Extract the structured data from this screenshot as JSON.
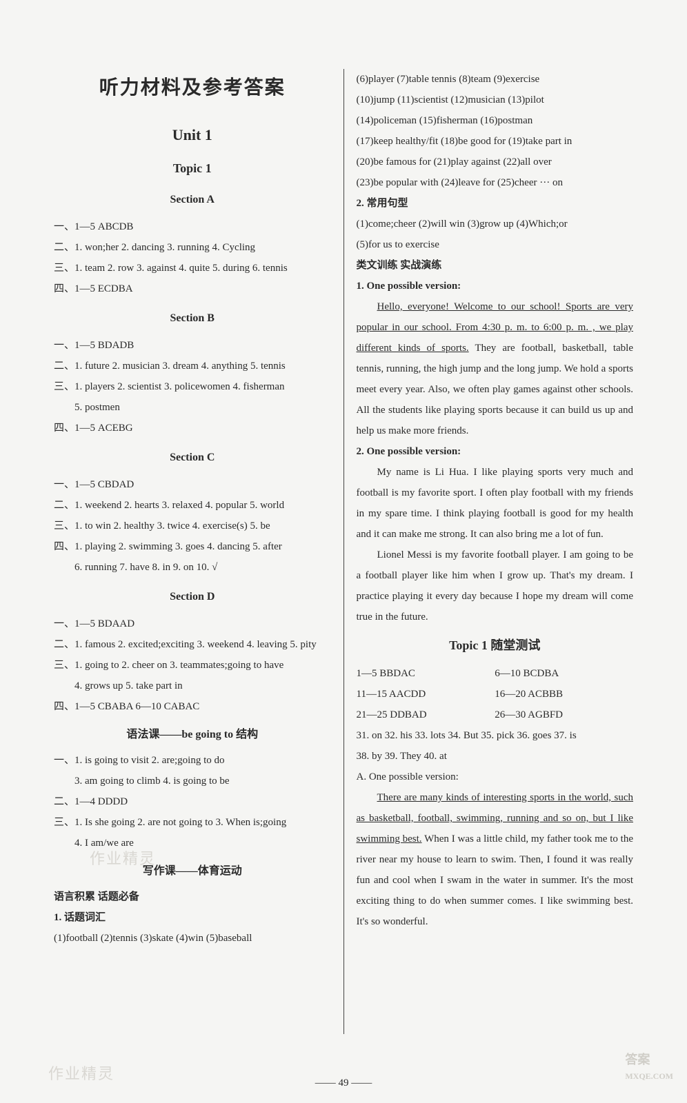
{
  "header": {
    "main_title": "听力材料及参考答案"
  },
  "left": {
    "unit": "Unit 1",
    "topic": "Topic 1",
    "secA": {
      "title": "Section A",
      "l1": "一、1—5 ABCDB",
      "l2": "二、1. won;her  2. dancing  3. running  4. Cycling",
      "l3": "三、1. team  2. row  3. against  4. quite  5. during  6. tennis",
      "l4": "四、1—5 ECDBA"
    },
    "secB": {
      "title": "Section B",
      "l1": "一、1—5 BDADB",
      "l2": "二、1. future  2. musician  3. dream  4. anything  5. tennis",
      "l3a": "三、1. players   2. scientist   3. policewomen   4. fisherman",
      "l3b": "5. postmen",
      "l4": "四、1—5 ACEBG"
    },
    "secC": {
      "title": "Section C",
      "l1": "一、1—5 CBDAD",
      "l2": "二、1. weekend  2. hearts  3. relaxed  4. popular  5. world",
      "l3": "三、1. to win  2. healthy  3. twice  4. exercise(s)  5. be",
      "l4a": "四、1. playing  2. swimming  3. goes  4. dancing  5. after",
      "l4b": "6. running  7. have  8. in  9. on  10. √"
    },
    "secD": {
      "title": "Section D",
      "l1": "一、1—5 BDAAD",
      "l2": "二、1. famous  2. excited;exciting  3. weekend  4. leaving  5. pity",
      "l3a": "三、1. going to  2. cheer on  3. teammates;going to have",
      "l3b": "4. grows up  5. take part in",
      "l4": "四、1—5 CBABA  6—10 CABAC"
    },
    "grammar": {
      "title": "语法课——be going to 结构",
      "l1a": "一、1. is going to visit  2. are;going to do",
      "l1b": "3. am going to climb  4. is going to be",
      "l2": "二、1—4 DDDD",
      "l3a": "三、1. Is she going  2. are not going to  3. When is;going",
      "l3b": "4. I am/we are"
    },
    "writing": {
      "title": "写作课——体育运动",
      "h1": "语言积累  话题必备",
      "h2": "1. 话题词汇",
      "l1": "(1)football  (2)tennis  (3)skate  (4)win  (5)baseball"
    }
  },
  "right": {
    "vocab": {
      "l1": "(6)player  (7)table tennis  (8)team  (9)exercise",
      "l2": "(10)jump  (11)scientist  (12)musician  (13)pilot",
      "l3": "(14)policeman  (15)fisherman  (16)postman",
      "l4": "(17)keep healthy/fit  (18)be good for  (19)take part in",
      "l5": "(20)be famous for  (21)play against  (22)all over",
      "l6": "(23)be popular with  (24)leave for  (25)cheer ··· on"
    },
    "patterns": {
      "h": "2. 常用句型",
      "l1": "(1)come;cheer  (2)will win  (3)grow up  (4)Which;or",
      "l2": "(5)for us to exercise"
    },
    "practice_h": "类文训练  实战演练",
    "v1_label": "1. One possible version:",
    "v1_u": "Hello, everyone! Welcome to our school! Sports are very popular in our school. From 4:30 p. m. to 6:00 p. m. , we play different kinds of sports.",
    "v1_rest": " They are football, basketball, table tennis, running, the high jump and the long jump. We hold a sports meet every year. Also, we often play games against other schools. All the students like playing sports because it can build us up and help us make more friends.",
    "v2_label": "2. One possible version:",
    "v2_p1": "My name is Li Hua. I like playing sports very much and football is my favorite sport. I often play football with my friends in my spare time. I think playing football is good for my health and it can make me strong. It can also bring me a lot of fun.",
    "v2_p2": "Lionel Messi is my favorite football player. I am going to be a football player like him when I grow up. That's my dream. I practice playing it every day because I hope my dream will come true in the future.",
    "test": {
      "title": "Topic 1 随堂测试",
      "r1a": "1—5 BBDAC",
      "r1b": "6—10 BCDBA",
      "r2a": "11—15 AACDD",
      "r2b": "16—20 ACBBB",
      "r3a": "21—25 DDBAD",
      "r3b": "26—30 AGBFD",
      "r4": "31. on  32. his  33. lots  34. But  35. pick  36. goes  37. is",
      "r5": "38. by  39. They  40. at",
      "vA": "A. One possible version:",
      "vA_u": "There are many kinds of interesting sports in the world, such as basketball, football, swimming, running and so on, but I like swimming best.",
      "vA_rest": " When I was a little child, my father took me to the river near my house to learn to swim. Then, I found it was really fun and cool when I swam in the water in summer. It's the most exciting thing to do when summer comes. I like swimming best. It's so wonderful."
    }
  },
  "page_num": "—— 49 ——",
  "wm": {
    "a": "作业精灵",
    "b": "MXQE.COM",
    "c": "答案"
  }
}
